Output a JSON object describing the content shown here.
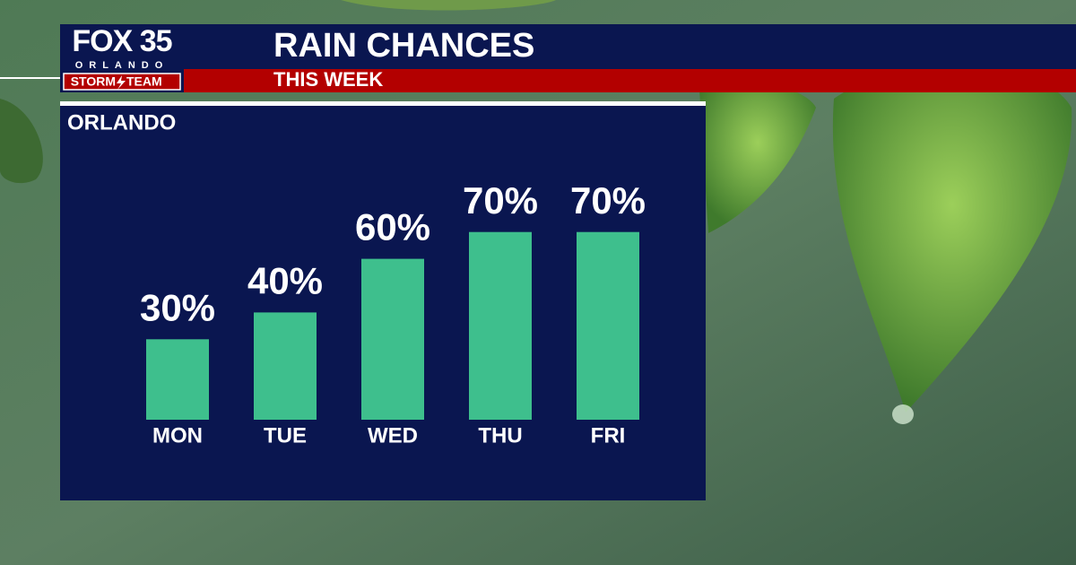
{
  "logo": {
    "brand": "FOX 35",
    "city": "ORLANDO",
    "team_left": "STORM",
    "team_right": "TEAM"
  },
  "chart_data": {
    "type": "bar",
    "title": "RAIN CHANCES",
    "subtitle": "THIS WEEK",
    "location": "ORLANDO",
    "categories": [
      "MON",
      "TUE",
      "WED",
      "THU",
      "FRI"
    ],
    "values": [
      30,
      40,
      60,
      70,
      70
    ],
    "value_labels": [
      "30%",
      "40%",
      "60%",
      "70%",
      "70%"
    ],
    "color": "#3ebf8d"
  }
}
